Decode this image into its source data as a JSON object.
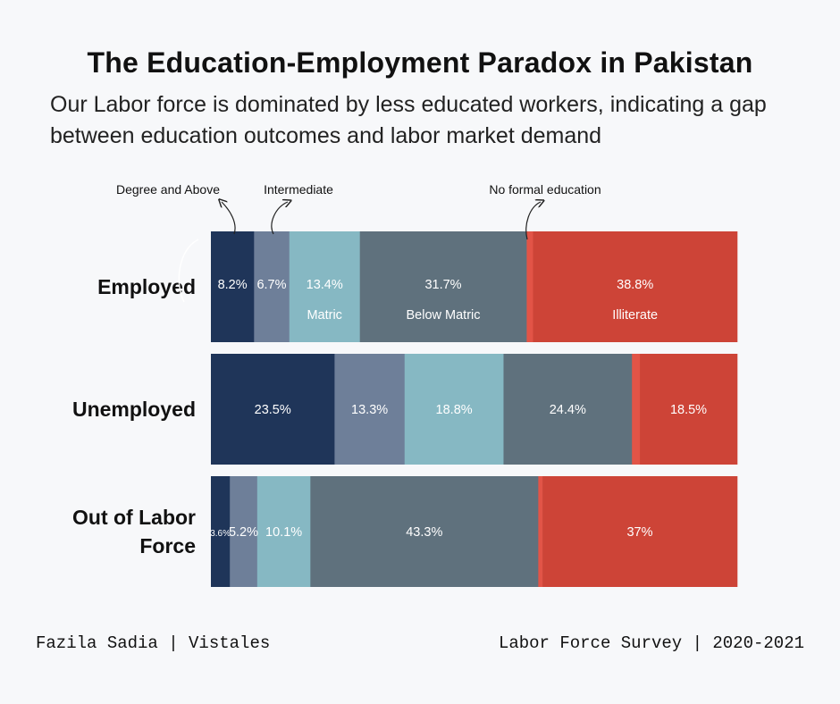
{
  "title": "The Education-Employment Paradox in Pakistan",
  "subtitle": "Our Labor force is dominated by less educated workers, indicating a gap between education outcomes and labor market demand",
  "footer": {
    "author": "Fazila Sadia | Vistales",
    "source": "Labor Force Survey | 2020-2021"
  },
  "colors": {
    "degree_and_above": "#1f3559",
    "intermediate": "#6e7f99",
    "matric": "#86b8c3",
    "below_matric": "#5f717d",
    "no_formal_education": "#e25447",
    "illiterate": "#cd4437"
  },
  "chart_data": {
    "type": "bar",
    "orientation": "horizontal",
    "stacked": true,
    "xlim": [
      0,
      100
    ],
    "categories": [
      [
        "Employed"
      ],
      [
        "Unemployed"
      ],
      [
        "Out of Labor",
        "Force"
      ]
    ],
    "series": [
      {
        "key": "degree_and_above",
        "name": "Degree and Above",
        "values": [
          8.2,
          23.5,
          3.6
        ],
        "labels": [
          "8.2%",
          "23.5%",
          "3.6%"
        ]
      },
      {
        "key": "intermediate",
        "name": "Intermediate",
        "values": [
          6.7,
          13.3,
          5.2
        ],
        "labels": [
          "6.7%",
          "13.3%",
          "5.2%"
        ]
      },
      {
        "key": "matric",
        "name": "Matric",
        "values": [
          13.4,
          18.8,
          10.1
        ],
        "labels": [
          "13.4%",
          "18.8%",
          "10.1%"
        ]
      },
      {
        "key": "below_matric",
        "name": "Below Matric",
        "values": [
          31.7,
          24.4,
          43.3
        ],
        "labels": [
          "31.7%",
          "24.4%",
          "43.3%"
        ]
      },
      {
        "key": "no_formal_education",
        "name": "No formal education",
        "values": [
          1.2,
          1.5,
          0.8
        ],
        "labels": [
          "",
          "",
          ""
        ]
      },
      {
        "key": "illiterate",
        "name": "Illiterate",
        "values": [
          38.8,
          18.5,
          37
        ],
        "labels": [
          "38.8%",
          "18.5%",
          "37%"
        ]
      }
    ],
    "annotations": [
      {
        "text": "Degree and Above",
        "series": "degree_and_above"
      },
      {
        "text": "Intermediate",
        "series": "intermediate"
      },
      {
        "text": "No formal education",
        "series": "no_formal_education"
      }
    ],
    "inside_legend_row": "Employed"
  }
}
